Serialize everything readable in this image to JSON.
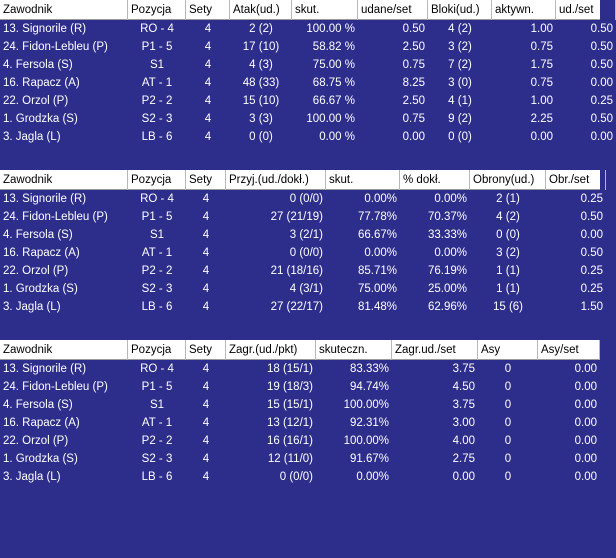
{
  "attack": {
    "headers": [
      "Zawodnik",
      "Pozycja",
      "Sety",
      "Atak(ud.)",
      "skut.",
      "udane/set",
      "Bloki(ud.)",
      "aktywn.",
      "ud./set"
    ],
    "rows": [
      [
        "13. Signorile (R)",
        "RO - 4",
        "4",
        "2 (2)",
        "100.00 %",
        "0.50",
        "4 (2)",
        "1.00",
        "0.50"
      ],
      [
        "24. Fidon-Lebleu (P)",
        "P1 - 5",
        "4",
        "17 (10)",
        "58.82 %",
        "2.50",
        "3 (2)",
        "0.75",
        "0.50"
      ],
      [
        "4. Fersola (S)",
        "S1",
        "4",
        "4 (3)",
        "75.00 %",
        "0.75",
        "7 (2)",
        "1.75",
        "0.50"
      ],
      [
        "16. Rapacz (A)",
        "AT - 1",
        "4",
        "48 (33)",
        "68.75 %",
        "8.25",
        "3 (0)",
        "0.75",
        "0.00"
      ],
      [
        "22. Orzol (P)",
        "P2 - 2",
        "4",
        "15 (10)",
        "66.67 %",
        "2.50",
        "4 (1)",
        "1.00",
        "0.25"
      ],
      [
        "1. Grodzka (S)",
        "S2 - 3",
        "4",
        "3 (3)",
        "100.00 %",
        "0.75",
        "9 (2)",
        "2.25",
        "0.50"
      ],
      [
        "3. Jagla (L)",
        "LB - 6",
        "4",
        "0 (0)",
        "0.00 %",
        "0.00",
        "0 (0)",
        "0.00",
        "0.00"
      ]
    ]
  },
  "reception": {
    "headers": [
      "Zawodnik",
      "Pozycja",
      "Sety",
      "Przyj.(ud./dokł.)",
      "skut.",
      "% dokł.",
      "Obrony(ud.)",
      "Obr./set"
    ],
    "rows": [
      [
        "13. Signorile (R)",
        "RO - 4",
        "4",
        "0 (0/0)",
        "0.00%",
        "0.00%",
        "2 (1)",
        "0.25"
      ],
      [
        "24. Fidon-Lebleu (P)",
        "P1 - 5",
        "4",
        "27 (21/19)",
        "77.78%",
        "70.37%",
        "4 (2)",
        "0.50"
      ],
      [
        "4. Fersola (S)",
        "S1",
        "4",
        "3 (2/1)",
        "66.67%",
        "33.33%",
        "0 (0)",
        "0.00"
      ],
      [
        "16. Rapacz (A)",
        "AT - 1",
        "4",
        "0 (0/0)",
        "0.00%",
        "0.00%",
        "3 (2)",
        "0.50"
      ],
      [
        "22. Orzol (P)",
        "P2 - 2",
        "4",
        "21 (18/16)",
        "85.71%",
        "76.19%",
        "1 (1)",
        "0.25"
      ],
      [
        "1. Grodzka (S)",
        "S2 - 3",
        "4",
        "4 (3/1)",
        "75.00%",
        "25.00%",
        "1 (1)",
        "0.25"
      ],
      [
        "3. Jagla (L)",
        "LB - 6",
        "4",
        "27 (22/17)",
        "81.48%",
        "62.96%",
        "15 (6)",
        "1.50"
      ]
    ]
  },
  "serve": {
    "headers": [
      "Zawodnik",
      "Pozycja",
      "Sety",
      "Zagr.(ud./pkt)",
      "skuteczn.",
      "Zagr.ud./set",
      "Asy",
      "Asy/set"
    ],
    "rows": [
      [
        "13. Signorile (R)",
        "RO - 4",
        "4",
        "18 (15/1)",
        "83.33%",
        "3.75",
        "0",
        "0.00"
      ],
      [
        "24. Fidon-Lebleu (P)",
        "P1 - 5",
        "4",
        "19 (18/3)",
        "94.74%",
        "4.50",
        "0",
        "0.00"
      ],
      [
        "4. Fersola (S)",
        "S1",
        "4",
        "15 (15/1)",
        "100.00%",
        "3.75",
        "0",
        "0.00"
      ],
      [
        "16. Rapacz (A)",
        "AT - 1",
        "4",
        "13 (12/1)",
        "92.31%",
        "3.00",
        "0",
        "0.00"
      ],
      [
        "22. Orzol (P)",
        "P2 - 2",
        "4",
        "16 (16/1)",
        "100.00%",
        "4.00",
        "0",
        "0.00"
      ],
      [
        "1. Grodzka (S)",
        "S2 - 3",
        "4",
        "12 (11/0)",
        "91.67%",
        "2.75",
        "0",
        "0.00"
      ],
      [
        "3. Jagla (L)",
        "LB - 6",
        "4",
        "0 (0/0)",
        "0.00%",
        "0.00",
        "0",
        "0.00"
      ]
    ]
  },
  "colors": {
    "background": "#2d2d8c",
    "header": "#ffffff",
    "text": "#ffffff"
  }
}
